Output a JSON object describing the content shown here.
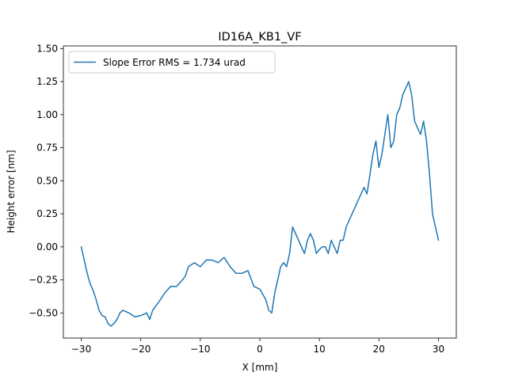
{
  "chart_data": {
    "type": "line",
    "title": "ID16A_KB1_VF",
    "xlabel": "X [mm]",
    "ylabel": "Height error [nm]",
    "xlim": [
      -33,
      33
    ],
    "ylim": [
      -0.69,
      1.52
    ],
    "xticks": [
      -30,
      -20,
      -10,
      0,
      10,
      20,
      30
    ],
    "xtick_labels": [
      "−30",
      "−20",
      "−10",
      "0",
      "10",
      "20",
      "30"
    ],
    "yticks": [
      -0.5,
      -0.25,
      0.0,
      0.25,
      0.5,
      0.75,
      1.0,
      1.25,
      1.5
    ],
    "ytick_labels": [
      "−0.50",
      "−0.25",
      "0.00",
      "0.25",
      "0.50",
      "0.75",
      "1.00",
      "1.25",
      "1.50"
    ],
    "grid": false,
    "legend_position": "upper-left",
    "series": [
      {
        "name": "Slope Error RMS = 1.734 urad",
        "color": "#1f77b4",
        "x": [
          -30,
          -29.5,
          -29,
          -28.5,
          -28,
          -27.5,
          -27,
          -26.5,
          -26,
          -25.5,
          -25,
          -24.5,
          -24,
          -23.5,
          -23,
          -22,
          -21,
          -20,
          -19,
          -18.5,
          -18,
          -17.5,
          -17,
          -16,
          -15,
          -14,
          -13,
          -12.5,
          -12,
          -11,
          -10,
          -9,
          -8,
          -7,
          -6,
          -5,
          -4,
          -3,
          -2,
          -1,
          0,
          1,
          1.5,
          2,
          2.5,
          3,
          3.5,
          4,
          4.5,
          5,
          5.5,
          6,
          6.5,
          7,
          7.5,
          8,
          8.5,
          9,
          9.5,
          10,
          10.5,
          11,
          11.5,
          12,
          12.5,
          13,
          13.5,
          14,
          14.5,
          15,
          15.5,
          16,
          16.5,
          17,
          17.5,
          18,
          18.5,
          19,
          19.5,
          20,
          20.5,
          21,
          21.5,
          22,
          22.5,
          23,
          23.5,
          24,
          24.5,
          25,
          25.5,
          26,
          26.5,
          27,
          27.5,
          28,
          28.5,
          29,
          29.5,
          30
        ],
        "y": [
          0.0,
          -0.1,
          -0.2,
          -0.28,
          -0.33,
          -0.4,
          -0.48,
          -0.52,
          -0.53,
          -0.58,
          -0.6,
          -0.58,
          -0.55,
          -0.5,
          -0.48,
          -0.5,
          -0.53,
          -0.52,
          -0.5,
          -0.55,
          -0.48,
          -0.45,
          -0.42,
          -0.35,
          -0.3,
          -0.3,
          -0.25,
          -0.22,
          -0.15,
          -0.12,
          -0.15,
          -0.1,
          -0.1,
          -0.12,
          -0.08,
          -0.15,
          -0.2,
          -0.2,
          -0.18,
          -0.3,
          -0.32,
          -0.4,
          -0.48,
          -0.5,
          -0.35,
          -0.25,
          -0.15,
          -0.12,
          -0.15,
          -0.05,
          0.15,
          0.1,
          0.05,
          0.0,
          -0.05,
          0.05,
          0.1,
          0.05,
          -0.05,
          -0.02,
          0.0,
          0.0,
          -0.05,
          0.05,
          0.0,
          -0.05,
          0.05,
          0.05,
          0.15,
          0.2,
          0.25,
          0.3,
          0.35,
          0.4,
          0.45,
          0.4,
          0.55,
          0.7,
          0.8,
          0.6,
          0.7,
          0.85,
          1.0,
          0.75,
          0.8,
          1.0,
          1.05,
          1.15,
          1.2,
          1.25,
          1.15,
          0.95,
          0.9,
          0.85,
          0.95,
          0.8,
          0.55,
          0.25,
          0.15,
          0.05
        ]
      }
    ]
  }
}
